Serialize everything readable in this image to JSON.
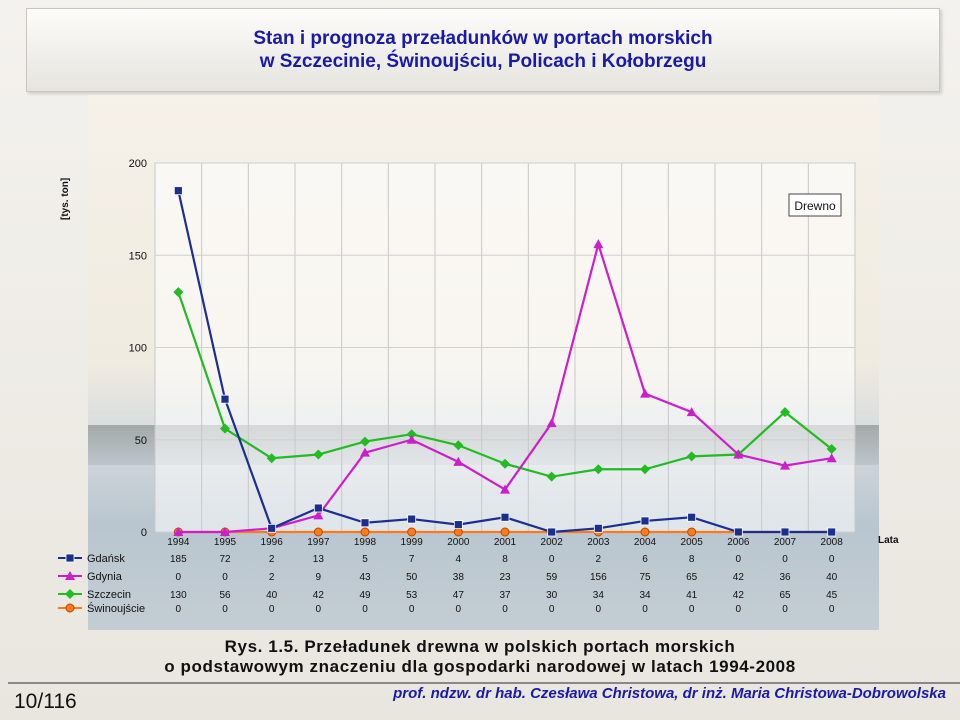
{
  "title": {
    "line1": "Stan i prognoza przeładunków w portach morskich",
    "line2": "w Szczecinie, Świnoujściu, Policach i Kołobrzegu"
  },
  "caption": {
    "line1": "Rys. 1.5. Przeładunek drewna w polskich portach morskich",
    "line2": "o podstawowym znaczeniu dla gospodarki narodowej w latach 1994-2008"
  },
  "footer": {
    "page": "10/116",
    "author": "prof. ndzw. dr hab. Czesława Christowa, dr inż. Maria Christowa-Dobrowolska"
  },
  "chart_data": {
    "type": "line",
    "ylabel": "[tys. ton]",
    "xlabel": "Lata",
    "legend_box": "Drewno",
    "ylim": [
      0,
      200
    ],
    "yticks": [
      0,
      50,
      100,
      150,
      200
    ],
    "grid": true,
    "categories": [
      "1994",
      "1995",
      "1996",
      "1997",
      "1998",
      "1999",
      "2000",
      "2001",
      "2002",
      "2003",
      "2004",
      "2005",
      "2006",
      "2007",
      "2008"
    ],
    "series": [
      {
        "name": "Gdańsk",
        "color": "#1a2f8f",
        "marker": "square",
        "values": [
          185,
          72,
          2,
          13,
          5,
          7,
          4,
          8,
          0,
          2,
          6,
          8,
          0,
          0,
          0
        ]
      },
      {
        "name": "Gdynia",
        "color": "#cc1fcc",
        "marker": "triangle",
        "values": [
          0,
          0,
          2,
          9,
          43,
          50,
          38,
          23,
          59,
          156,
          75,
          65,
          42,
          36,
          40
        ]
      },
      {
        "name": "Szczecin",
        "color": "#22bb22",
        "marker": "diamond",
        "values": [
          130,
          56,
          40,
          42,
          49,
          53,
          47,
          37,
          30,
          34,
          34,
          41,
          42,
          65,
          45
        ]
      },
      {
        "name": "Świnoujście",
        "color": "#ff7a1a",
        "marker": "circle",
        "values": [
          0,
          0,
          0,
          0,
          0,
          0,
          0,
          0,
          0,
          0,
          0,
          0,
          0,
          0,
          0
        ]
      }
    ]
  }
}
